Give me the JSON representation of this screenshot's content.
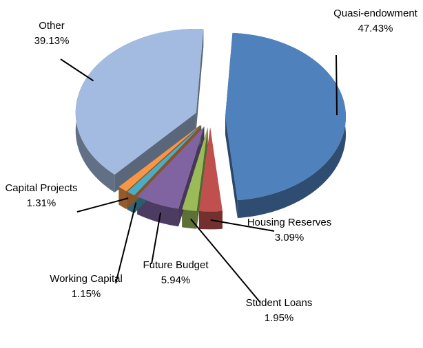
{
  "chart_data": {
    "type": "pie",
    "categories": [
      "Quasi-endowment",
      "Housing Reserves",
      "Student Loans",
      "Future Budget",
      "Working Capital",
      "Capital Projects",
      "Other"
    ],
    "values": [
      47.43,
      3.09,
      1.95,
      5.94,
      1.15,
      1.31,
      39.13
    ],
    "value_labels": [
      "47.43%",
      "3.09%",
      "1.95%",
      "5.94%",
      "1.15%",
      "1.31%",
      "39.13%"
    ],
    "colors": [
      "#4f81bd",
      "#c0504d",
      "#9bbb59",
      "#8064a2",
      "#4bacc6",
      "#f79646",
      "#a3bbe0"
    ]
  }
}
